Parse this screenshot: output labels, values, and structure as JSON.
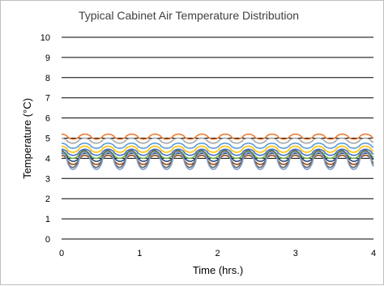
{
  "chart_data": {
    "type": "line",
    "title": "Typical Cabinet Air Temperature Distribution",
    "xlabel": "Time (hrs.)",
    "ylabel": "Temperature (°C)",
    "xlim": [
      0,
      4
    ],
    "ylim": [
      0,
      10
    ],
    "x_ticks": [
      "0",
      "1",
      "2",
      "3",
      "4"
    ],
    "y_ticks": [
      "0",
      "1",
      "2",
      "3",
      "4",
      "5",
      "6",
      "7",
      "8",
      "9",
      "10"
    ],
    "grid": "horizontal",
    "legend": "none",
    "cycle_period_hrs": 0.3,
    "series": [
      {
        "color": "#ED7D31",
        "min": 4.95,
        "max": 5.2,
        "phase": 0.0
      },
      {
        "color": "#A5A5A5",
        "min": 4.75,
        "max": 5.0,
        "phase": 0.02
      },
      {
        "color": "#5B9BD5",
        "min": 4.5,
        "max": 4.75,
        "phase": 0.01
      },
      {
        "color": "#FFC000",
        "min": 4.3,
        "max": 4.6,
        "phase": 0.015
      },
      {
        "color": "#4472C4",
        "min": 4.15,
        "max": 4.45,
        "phase": 0.005
      },
      {
        "color": "#70AD47",
        "min": 4.0,
        "max": 4.35,
        "phase": 0.02
      },
      {
        "color": "#264478",
        "min": 3.85,
        "max": 4.25,
        "phase": 0.0
      },
      {
        "color": "#9E480E",
        "min": 3.7,
        "max": 4.15,
        "phase": 0.01
      },
      {
        "color": "#636363",
        "min": 3.55,
        "max": 4.4,
        "phase": 0.025
      },
      {
        "color": "#7F9FCF",
        "min": 3.45,
        "max": 4.3,
        "phase": 0.01
      }
    ]
  }
}
